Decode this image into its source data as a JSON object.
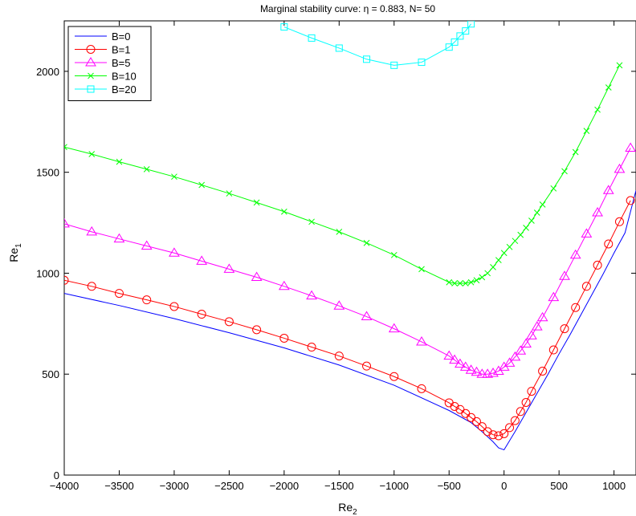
{
  "chart_data": {
    "type": "line",
    "title": "Marginal stability curve: η = 0.883, N= 50",
    "xlabel": "Re",
    "xlabel_sub": "2",
    "ylabel": "Re",
    "ylabel_sub": "1",
    "xlim": [
      -4000,
      1200
    ],
    "ylim": [
      0,
      2250
    ],
    "xticks": [
      -4000,
      -3500,
      -3000,
      -2500,
      -2000,
      -1500,
      -1000,
      -500,
      0,
      500,
      1000
    ],
    "yticks": [
      0,
      500,
      1000,
      1500,
      2000
    ],
    "grid": false,
    "legend_position": "top-left",
    "series": [
      {
        "name": "B=0",
        "color": "#0000ff",
        "marker": "none",
        "x": [
          -4000,
          -3500,
          -3000,
          -2500,
          -2000,
          -1500,
          -1000,
          -500,
          -300,
          -200,
          -100,
          -50,
          0,
          100,
          200,
          300,
          400,
          500,
          600,
          700,
          800,
          900,
          1000,
          1100,
          1200
        ],
        "y": [
          900,
          840,
          775,
          705,
          630,
          545,
          445,
          320,
          260,
          215,
          165,
          135,
          125,
          215,
          310,
          405,
          500,
          600,
          695,
          795,
          895,
          995,
          1100,
          1200,
          1410
        ]
      },
      {
        "name": "B=1",
        "color": "#ff0000",
        "marker": "circle",
        "x": [
          -4000,
          -3750,
          -3500,
          -3250,
          -3000,
          -2750,
          -2500,
          -2250,
          -2000,
          -1750,
          -1500,
          -1250,
          -1000,
          -750,
          -500,
          -450,
          -400,
          -350,
          -300,
          -250,
          -200,
          -150,
          -100,
          -50,
          0,
          50,
          100,
          150,
          200,
          250,
          350,
          450,
          550,
          650,
          750,
          850,
          950,
          1050,
          1150
        ],
        "y": [
          965,
          935,
          900,
          868,
          835,
          797,
          760,
          720,
          678,
          634,
          590,
          540,
          488,
          428,
          358,
          340,
          325,
          305,
          285,
          265,
          240,
          215,
          200,
          195,
          205,
          235,
          270,
          315,
          360,
          415,
          515,
          620,
          725,
          830,
          935,
          1040,
          1145,
          1255,
          1360
        ]
      },
      {
        "name": "B=5",
        "color": "#ff00ff",
        "marker": "triangle",
        "x": [
          -4000,
          -3750,
          -3500,
          -3250,
          -3000,
          -2750,
          -2500,
          -2250,
          -2000,
          -1750,
          -1500,
          -1250,
          -1000,
          -750,
          -500,
          -450,
          -400,
          -350,
          -300,
          -250,
          -200,
          -150,
          -100,
          -50,
          0,
          50,
          100,
          150,
          200,
          250,
          300,
          350,
          450,
          550,
          650,
          750,
          850,
          950,
          1050,
          1150
        ],
        "y": [
          1245,
          1205,
          1170,
          1135,
          1100,
          1060,
          1020,
          980,
          935,
          888,
          838,
          785,
          725,
          660,
          590,
          570,
          550,
          535,
          520,
          510,
          500,
          500,
          505,
          515,
          535,
          555,
          585,
          615,
          650,
          690,
          735,
          780,
          880,
          985,
          1090,
          1195,
          1300,
          1410,
          1515,
          1620
        ]
      },
      {
        "name": "B=10",
        "color": "#00ff00",
        "marker": "x",
        "x": [
          -4000,
          -3750,
          -3500,
          -3250,
          -3000,
          -2750,
          -2500,
          -2250,
          -2000,
          -1750,
          -1500,
          -1250,
          -1000,
          -750,
          -500,
          -450,
          -400,
          -350,
          -300,
          -250,
          -200,
          -150,
          -100,
          -50,
          0,
          50,
          100,
          150,
          200,
          250,
          300,
          350,
          450,
          550,
          650,
          750,
          850,
          950,
          1050
        ],
        "y": [
          1625,
          1590,
          1552,
          1515,
          1478,
          1437,
          1395,
          1350,
          1305,
          1255,
          1205,
          1150,
          1090,
          1020,
          955,
          950,
          950,
          950,
          955,
          965,
          980,
          1000,
          1030,
          1065,
          1100,
          1130,
          1160,
          1190,
          1225,
          1260,
          1300,
          1340,
          1420,
          1505,
          1600,
          1705,
          1810,
          1920,
          2030
        ]
      },
      {
        "name": "B=20",
        "color": "#00ffff",
        "marker": "square",
        "x": [
          -2000,
          -1750,
          -1500,
          -1250,
          -1000,
          -750,
          -500,
          -450,
          -400,
          -350,
          -300
        ],
        "y": [
          2220,
          2165,
          2115,
          2060,
          2030,
          2045,
          2120,
          2145,
          2175,
          2200,
          2235
        ]
      }
    ]
  }
}
